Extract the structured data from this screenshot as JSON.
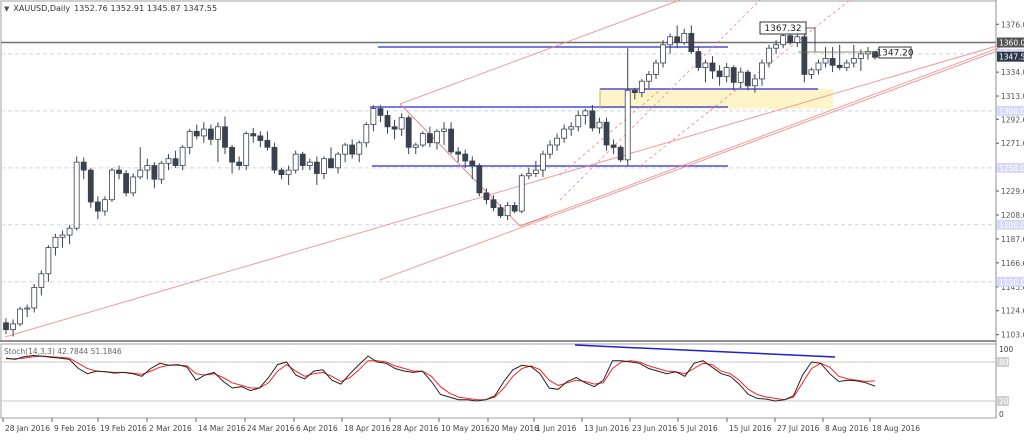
{
  "header": {
    "dropdown_icon": "triangle-down",
    "symbol": "XAUUSD,Daily",
    "ohlc": "1352.76 1352.91 1345.87 1347.55"
  },
  "stochastic": {
    "label": "Stoch(14,3,3) 42.7844 51.1846",
    "levels": [
      100,
      80,
      20,
      0
    ],
    "level_labels": [
      "100",
      "80",
      "20",
      "0"
    ]
  },
  "price_axis": {
    "ticks": [
      "1376.00",
      "1334.00",
      "1313.00",
      "1292.60",
      "1271.60",
      "1229.60",
      "1208.60",
      "1187.60",
      "1166.60",
      "1145.60",
      "1124.60",
      "1103.60"
    ],
    "highlight_labels": [
      {
        "label": "1360.00",
        "style": "dark"
      },
      {
        "label": "1350.00",
        "style": "blue"
      },
      {
        "label": "1347.55",
        "style": "navy"
      },
      {
        "label": "1300.00",
        "style": "blue"
      },
      {
        "label": "1250.00",
        "style": "blue"
      },
      {
        "label": "1200.00",
        "style": "blue"
      },
      {
        "label": "1150.00",
        "style": "blue"
      }
    ]
  },
  "annotations": {
    "high_label": "1367.32",
    "last_label": "1347.20"
  },
  "time_axis": {
    "labels": [
      "28 Jan 2016",
      "9 Feb 2016",
      "19 Feb 2016",
      "2 Mar 2016",
      "14 Mar 2016",
      "24 Mar 2016",
      "6 Apr 2016",
      "18 Apr 2016",
      "28 Apr 2016",
      "10 May 2016",
      "20 May 2016",
      "1 Jun 2016",
      "13 Jun 2016",
      "23 Jun 2016",
      "5 Jul 2016",
      "15 Jul 2016",
      "27 Jul 2016",
      "8 Aug 2016",
      "18 Aug 2016"
    ]
  },
  "colors": {
    "bull_fill": "#ffffff",
    "bear_fill": "#3a4250",
    "candle_stroke": "#3a4250",
    "channel": "#f08080",
    "support_blue": "#2020d0",
    "zone_fill": "#fdf5c8",
    "grid": "#d0d0f0",
    "stoch_main": "#222222",
    "stoch_signal": "#ff2020"
  },
  "chart_data": {
    "type": "candlestick",
    "title": "XAUUSD,Daily",
    "subtitle": "1352.76 1352.91 1345.87 1347.55",
    "xlabel": "",
    "ylabel": "",
    "ylim": [
      1098,
      1385
    ],
    "y_ticks": [
      1376.0,
      1334.0,
      1313.0,
      1292.6,
      1271.6,
      1229.6,
      1208.6,
      1187.6,
      1166.6,
      1145.6,
      1124.6,
      1103.6
    ],
    "x_tick_labels": [
      "28 Jan 2016",
      "9 Feb 2016",
      "19 Feb 2016",
      "2 Mar 2016",
      "14 Mar 2016",
      "24 Mar 2016",
      "6 Apr 2016",
      "18 Apr 2016",
      "28 Apr 2016",
      "10 May 2016",
      "20 May 2016",
      "1 Jun 2016",
      "13 Jun 2016",
      "23 Jun 2016",
      "5 Jul 2016",
      "15 Jul 2016",
      "27 Jul 2016",
      "8 Aug 2016",
      "18 Aug 2016"
    ],
    "grid": true,
    "horizontal_levels": [
      1360.0,
      1350.0,
      1300.0,
      1250.0,
      1200.0,
      1150.0
    ],
    "annotations": [
      {
        "text": "1367.32",
        "type": "swing_high_label"
      },
      {
        "text": "1347.20",
        "type": "last_price_label"
      }
    ],
    "ohlc": [
      [
        1114,
        1118,
        1104,
        1108
      ],
      [
        1108,
        1117,
        1102,
        1113
      ],
      [
        1113,
        1128,
        1111,
        1126
      ],
      [
        1126,
        1130,
        1119,
        1127
      ],
      [
        1127,
        1148,
        1123,
        1145
      ],
      [
        1145,
        1160,
        1138,
        1157
      ],
      [
        1157,
        1182,
        1150,
        1180
      ],
      [
        1180,
        1192,
        1173,
        1189
      ],
      [
        1189,
        1195,
        1180,
        1191
      ],
      [
        1191,
        1200,
        1183,
        1197
      ],
      [
        1197,
        1260,
        1195,
        1255
      ],
      [
        1255,
        1259,
        1240,
        1248
      ],
      [
        1248,
        1250,
        1215,
        1220
      ],
      [
        1220,
        1225,
        1205,
        1212
      ],
      [
        1212,
        1225,
        1208,
        1222
      ],
      [
        1222,
        1250,
        1220,
        1248
      ],
      [
        1248,
        1252,
        1240,
        1245
      ],
      [
        1245,
        1248,
        1225,
        1228
      ],
      [
        1228,
        1245,
        1225,
        1242
      ],
      [
        1242,
        1268,
        1240,
        1248
      ],
      [
        1248,
        1258,
        1240,
        1252
      ],
      [
        1252,
        1255,
        1232,
        1240
      ],
      [
        1240,
        1256,
        1236,
        1254
      ],
      [
        1254,
        1262,
        1248,
        1258
      ],
      [
        1258,
        1265,
        1250,
        1252
      ],
      [
        1252,
        1270,
        1248,
        1268
      ],
      [
        1268,
        1284,
        1262,
        1282
      ],
      [
        1282,
        1288,
        1275,
        1278
      ],
      [
        1278,
        1290,
        1272,
        1284
      ],
      [
        1284,
        1288,
        1270,
        1275
      ],
      [
        1275,
        1290,
        1255,
        1286
      ],
      [
        1286,
        1295,
        1262,
        1268
      ],
      [
        1268,
        1270,
        1245,
        1255
      ],
      [
        1255,
        1260,
        1248,
        1252
      ],
      [
        1252,
        1282,
        1248,
        1280
      ],
      [
        1280,
        1285,
        1272,
        1278
      ],
      [
        1278,
        1282,
        1268,
        1274
      ],
      [
        1274,
        1282,
        1265,
        1268
      ],
      [
        1268,
        1272,
        1245,
        1248
      ],
      [
        1248,
        1250,
        1240,
        1244
      ],
      [
        1244,
        1252,
        1235,
        1248
      ],
      [
        1248,
        1265,
        1245,
        1262
      ],
      [
        1262,
        1264,
        1248,
        1252
      ],
      [
        1252,
        1258,
        1248,
        1255
      ],
      [
        1255,
        1260,
        1235,
        1245
      ],
      [
        1245,
        1260,
        1240,
        1258
      ],
      [
        1258,
        1268,
        1252,
        1250
      ],
      [
        1250,
        1264,
        1245,
        1262
      ],
      [
        1262,
        1272,
        1255,
        1270
      ],
      [
        1270,
        1275,
        1258,
        1262
      ],
      [
        1262,
        1274,
        1255,
        1272
      ],
      [
        1272,
        1290,
        1268,
        1288
      ],
      [
        1288,
        1305,
        1282,
        1302
      ],
      [
        1302,
        1305,
        1290,
        1296
      ],
      [
        1296,
        1300,
        1280,
        1286
      ],
      [
        1286,
        1292,
        1275,
        1284
      ],
      [
        1284,
        1298,
        1278,
        1294
      ],
      [
        1294,
        1296,
        1262,
        1268
      ],
      [
        1268,
        1272,
        1262,
        1270
      ],
      [
        1270,
        1282,
        1268,
        1280
      ],
      [
        1280,
        1286,
        1268,
        1272
      ],
      [
        1272,
        1284,
        1266,
        1282
      ],
      [
        1282,
        1290,
        1270,
        1284
      ],
      [
        1284,
        1290,
        1262,
        1264
      ],
      [
        1264,
        1268,
        1255,
        1262
      ],
      [
        1262,
        1266,
        1250,
        1256
      ],
      [
        1256,
        1260,
        1240,
        1252
      ],
      [
        1252,
        1254,
        1225,
        1228
      ],
      [
        1228,
        1232,
        1218,
        1222
      ],
      [
        1222,
        1226,
        1212,
        1215
      ],
      [
        1215,
        1218,
        1206,
        1208
      ],
      [
        1208,
        1220,
        1204,
        1217
      ],
      [
        1217,
        1220,
        1210,
        1212
      ],
      [
        1212,
        1245,
        1210,
        1243
      ],
      [
        1243,
        1250,
        1240,
        1245
      ],
      [
        1245,
        1256,
        1242,
        1248
      ],
      [
        1248,
        1265,
        1242,
        1262
      ],
      [
        1262,
        1274,
        1258,
        1270
      ],
      [
        1270,
        1280,
        1265,
        1276
      ],
      [
        1276,
        1288,
        1272,
        1284
      ],
      [
        1284,
        1290,
        1278,
        1286
      ],
      [
        1286,
        1300,
        1282,
        1296
      ],
      [
        1296,
        1302,
        1288,
        1300
      ],
      [
        1300,
        1305,
        1282,
        1285
      ],
      [
        1285,
        1294,
        1280,
        1290
      ],
      [
        1290,
        1294,
        1265,
        1270
      ],
      [
        1270,
        1275,
        1262,
        1268
      ],
      [
        1268,
        1270,
        1255,
        1257
      ],
      [
        1257,
        1355,
        1252,
        1318
      ],
      [
        1318,
        1320,
        1310,
        1316
      ],
      [
        1316,
        1328,
        1312,
        1326
      ],
      [
        1326,
        1335,
        1320,
        1332
      ],
      [
        1332,
        1345,
        1328,
        1342
      ],
      [
        1342,
        1362,
        1338,
        1358
      ],
      [
        1358,
        1368,
        1350,
        1365
      ],
      [
        1365,
        1375,
        1355,
        1360
      ],
      [
        1360,
        1372,
        1358,
        1368
      ],
      [
        1368,
        1375,
        1350,
        1352
      ],
      [
        1352,
        1356,
        1335,
        1338
      ],
      [
        1338,
        1345,
        1325,
        1342
      ],
      [
        1342,
        1348,
        1328,
        1335
      ],
      [
        1335,
        1340,
        1322,
        1330
      ],
      [
        1330,
        1342,
        1325,
        1338
      ],
      [
        1338,
        1340,
        1318,
        1325
      ],
      [
        1325,
        1338,
        1320,
        1334
      ],
      [
        1334,
        1336,
        1318,
        1322
      ],
      [
        1322,
        1332,
        1316,
        1328
      ],
      [
        1328,
        1345,
        1322,
        1342
      ],
      [
        1342,
        1358,
        1338,
        1355
      ],
      [
        1355,
        1362,
        1350,
        1358
      ],
      [
        1358,
        1368,
        1355,
        1366
      ],
      [
        1366,
        1368,
        1358,
        1360
      ],
      [
        1360,
        1368,
        1356,
        1365
      ],
      [
        1365,
        1367,
        1325,
        1332
      ],
      [
        1332,
        1338,
        1328,
        1336
      ],
      [
        1336,
        1345,
        1332,
        1342
      ],
      [
        1342,
        1356,
        1338,
        1346
      ],
      [
        1346,
        1356,
        1334,
        1340
      ],
      [
        1340,
        1358,
        1336,
        1338
      ],
      [
        1338,
        1345,
        1335,
        1342
      ],
      [
        1342,
        1358,
        1338,
        1346
      ],
      [
        1346,
        1354,
        1335,
        1350
      ],
      [
        1350,
        1356,
        1345,
        1352
      ],
      [
        1352,
        1353,
        1345,
        1347
      ]
    ],
    "stochastic_main": [
      86,
      84,
      88,
      90,
      89,
      87,
      86,
      84,
      70,
      62,
      66,
      65,
      63,
      64,
      62,
      58,
      70,
      78,
      75,
      76,
      72,
      52,
      60,
      64,
      50,
      40,
      42,
      36,
      40,
      56,
      76,
      80,
      60,
      54,
      66,
      68,
      52,
      46,
      62,
      76,
      89,
      80,
      78,
      70,
      66,
      64,
      66,
      50,
      30,
      26,
      22,
      22,
      20,
      22,
      28,
      50,
      68,
      75,
      73,
      62,
      40,
      38,
      50,
      56,
      48,
      42,
      52,
      82,
      82,
      80,
      78,
      70,
      66,
      62,
      65,
      58,
      78,
      82,
      72,
      62,
      58,
      46,
      30,
      24,
      23,
      20,
      22,
      28,
      60,
      80,
      78,
      62,
      50,
      52,
      51,
      48,
      43
    ],
    "stochastic_signal": [
      85,
      85,
      86,
      88,
      89,
      88,
      87,
      86,
      78,
      70,
      66,
      65,
      64,
      64,
      63,
      61,
      66,
      72,
      75,
      75,
      74,
      62,
      60,
      62,
      56,
      48,
      44,
      40,
      40,
      48,
      66,
      76,
      66,
      58,
      62,
      64,
      58,
      50,
      56,
      68,
      82,
      82,
      80,
      74,
      70,
      66,
      66,
      58,
      42,
      32,
      26,
      24,
      22,
      22,
      26,
      40,
      58,
      70,
      74,
      68,
      52,
      44,
      48,
      52,
      50,
      46,
      48,
      70,
      80,
      82,
      80,
      74,
      70,
      66,
      65,
      62,
      70,
      78,
      76,
      66,
      62,
      52,
      38,
      30,
      26,
      24,
      22,
      26,
      48,
      70,
      78,
      72,
      58,
      54,
      52,
      50,
      51
    ]
  }
}
